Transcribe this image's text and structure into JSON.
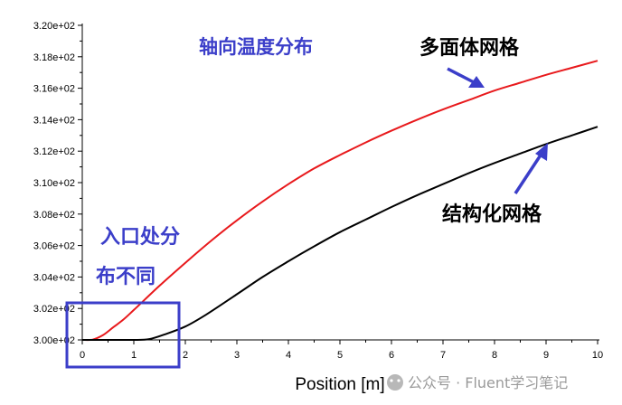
{
  "chart_data": {
    "type": "line",
    "title": "",
    "xlabel": "Position [m]",
    "ylabel": "",
    "xlim": [
      0,
      10
    ],
    "ylim": [
      300,
      320
    ],
    "xticks": [
      "0",
      "1",
      "2",
      "3",
      "4",
      "5",
      "6",
      "7",
      "8",
      "9",
      "10"
    ],
    "yticks": [
      "3.00e+02",
      "3.02e+02",
      "3.04e+02",
      "3.06e+02",
      "3.08e+02",
      "3.10e+02",
      "3.12e+02",
      "3.14e+02",
      "3.16e+02",
      "3.18e+02",
      "3.20e+02"
    ],
    "legend": "none",
    "grid": false,
    "series": [
      {
        "color": "#e8191c",
        "x": [
          0,
          0.2,
          0.4,
          0.6,
          0.8,
          1.0,
          1.5,
          2.0,
          2.5,
          3.0,
          3.5,
          4.0,
          4.5,
          5.0,
          5.5,
          6.0,
          6.5,
          7.0,
          7.5,
          8.0,
          8.5,
          9.0,
          9.5,
          10.0
        ],
        "y": [
          300.0,
          300.02,
          300.3,
          300.8,
          301.3,
          301.9,
          303.45,
          304.9,
          306.3,
          307.6,
          308.8,
          309.9,
          310.9,
          311.75,
          312.55,
          313.3,
          314.0,
          314.65,
          315.25,
          315.85,
          316.35,
          316.85,
          317.3,
          317.75
        ]
      },
      {
        "color": "#000000",
        "x": [
          0,
          0.5,
          1.0,
          1.3,
          1.6,
          2.0,
          2.4,
          3.0,
          3.5,
          4.0,
          4.5,
          5.0,
          5.5,
          6.0,
          6.5,
          7.0,
          7.5,
          8.0,
          8.5,
          9.0,
          9.5,
          10.0
        ],
        "y": [
          300.0,
          300.0,
          300.0,
          300.05,
          300.35,
          300.85,
          301.6,
          302.9,
          304.0,
          305.0,
          305.95,
          306.85,
          307.65,
          308.45,
          309.2,
          309.9,
          310.6,
          311.25,
          311.85,
          312.45,
          313.0,
          313.55
        ]
      }
    ],
    "annotations": [
      {
        "text": "轴向温度分布",
        "color": "#3b3ec9"
      },
      {
        "text": "多面体网格",
        "color": "#000000"
      },
      {
        "text": "结构化网格",
        "color": "#000000"
      },
      {
        "text": "入口处分",
        "color": "#3b3ec9"
      },
      {
        "text": "布不同",
        "color": "#3b3ec9"
      }
    ],
    "arrow_color": "#3b3ec9",
    "highlight_box_color": "#3b3ec9"
  },
  "watermark": {
    "icon": "wechat-icon",
    "text": "公众号 · Fluent学习笔记"
  }
}
